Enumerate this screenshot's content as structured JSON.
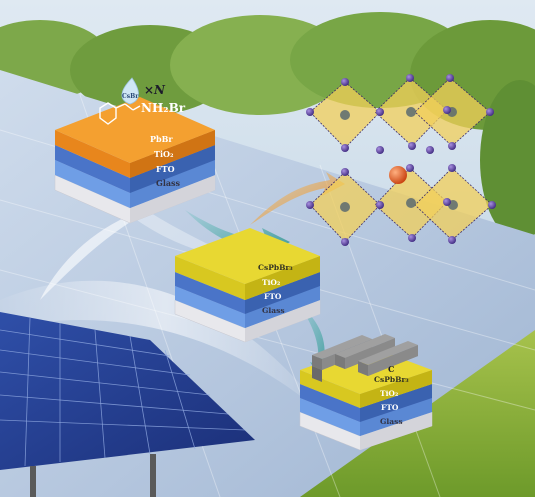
{
  "stack1": {
    "layers": [
      "PbBr",
      "TiO₂",
      "FTO",
      "Glass"
    ],
    "molecule_group": "NH₂Br",
    "droplet_label": "CsBr",
    "repeat_label": "×N"
  },
  "stack2": {
    "layers": [
      "CsPbBr₃",
      "TiO₂",
      "FTO",
      "Glass"
    ]
  },
  "stack3": {
    "electrode_label": "C",
    "layers": [
      "CsPbBr₃",
      "TiO₂",
      "FTO",
      "Glass"
    ]
  },
  "colors": {
    "pbbr_top": "#f4a030",
    "pbbr_side": "#e8861c",
    "perovskite_top": "#e8d832",
    "perovskite_side": "#d8c820",
    "tio2": "#4a74c8",
    "fto": "#6f9ee6",
    "glass": "#e8e8ec",
    "crystal_octahedron": "#f2cf5a",
    "crystal_atom_br": "#5a3fa0",
    "crystal_atom_cs": "#d8501e",
    "carbon": "#8a8a8a"
  },
  "icons": [
    "solar-panel",
    "perovskite-crystal",
    "arrow-flow"
  ]
}
